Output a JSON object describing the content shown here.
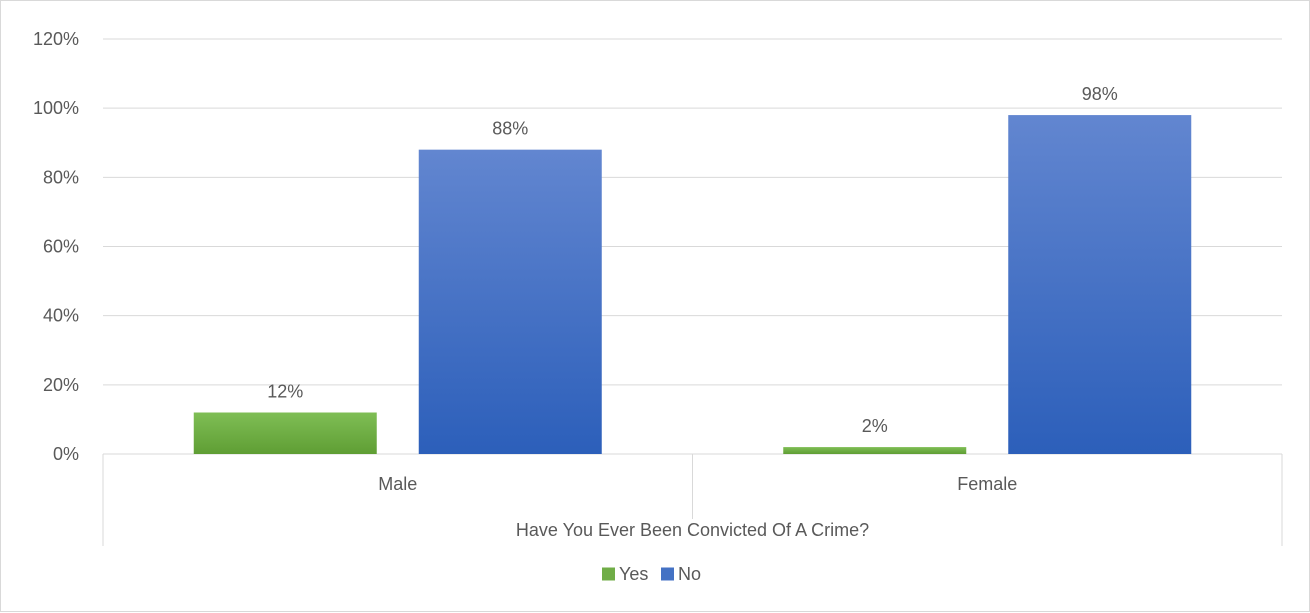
{
  "chart_data": {
    "type": "bar",
    "categories": [
      "Male",
      "Female"
    ],
    "series": [
      {
        "name": "Yes",
        "values": [
          12,
          2
        ],
        "labels": [
          "12%",
          "2%"
        ],
        "color": "#70ad47"
      },
      {
        "name": "No",
        "values": [
          88,
          98
        ],
        "labels": [
          "88%",
          "98%"
        ],
        "color": "#4472c4"
      }
    ],
    "xlabel": "Have You Ever Been Convicted Of A Crime?",
    "ylabel": "",
    "ylim": [
      0,
      120
    ],
    "yticks": [
      "0%",
      "20%",
      "40%",
      "60%",
      "80%",
      "100%",
      "120%"
    ],
    "grid": true,
    "legend_position": "bottom"
  }
}
